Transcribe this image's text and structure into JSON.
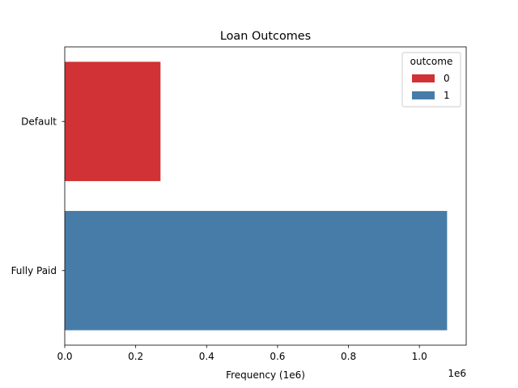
{
  "chart_data": {
    "type": "bar",
    "orientation": "horizontal",
    "title": "Loan Outcomes",
    "xlabel": "Frequency (1e6)",
    "ylabel": "",
    "offset_text": "1e6",
    "categories": [
      "Default",
      "Fully Paid"
    ],
    "series": [
      {
        "name": "0",
        "values": [
          270000,
          null
        ],
        "color": "#d03236"
      },
      {
        "name": "1",
        "values": [
          null,
          1078000
        ],
        "color": "#477ca8"
      }
    ],
    "xlim": [
      0,
      1131900
    ],
    "xticks": [
      0,
      200000,
      400000,
      600000,
      800000,
      1000000
    ],
    "xtick_labels": [
      "0.0",
      "0.2",
      "0.4",
      "0.6",
      "0.8",
      "1.0"
    ],
    "grid": false,
    "legend": {
      "title": "outcome",
      "placement": "top-right",
      "entries": [
        "0",
        "1"
      ]
    }
  }
}
